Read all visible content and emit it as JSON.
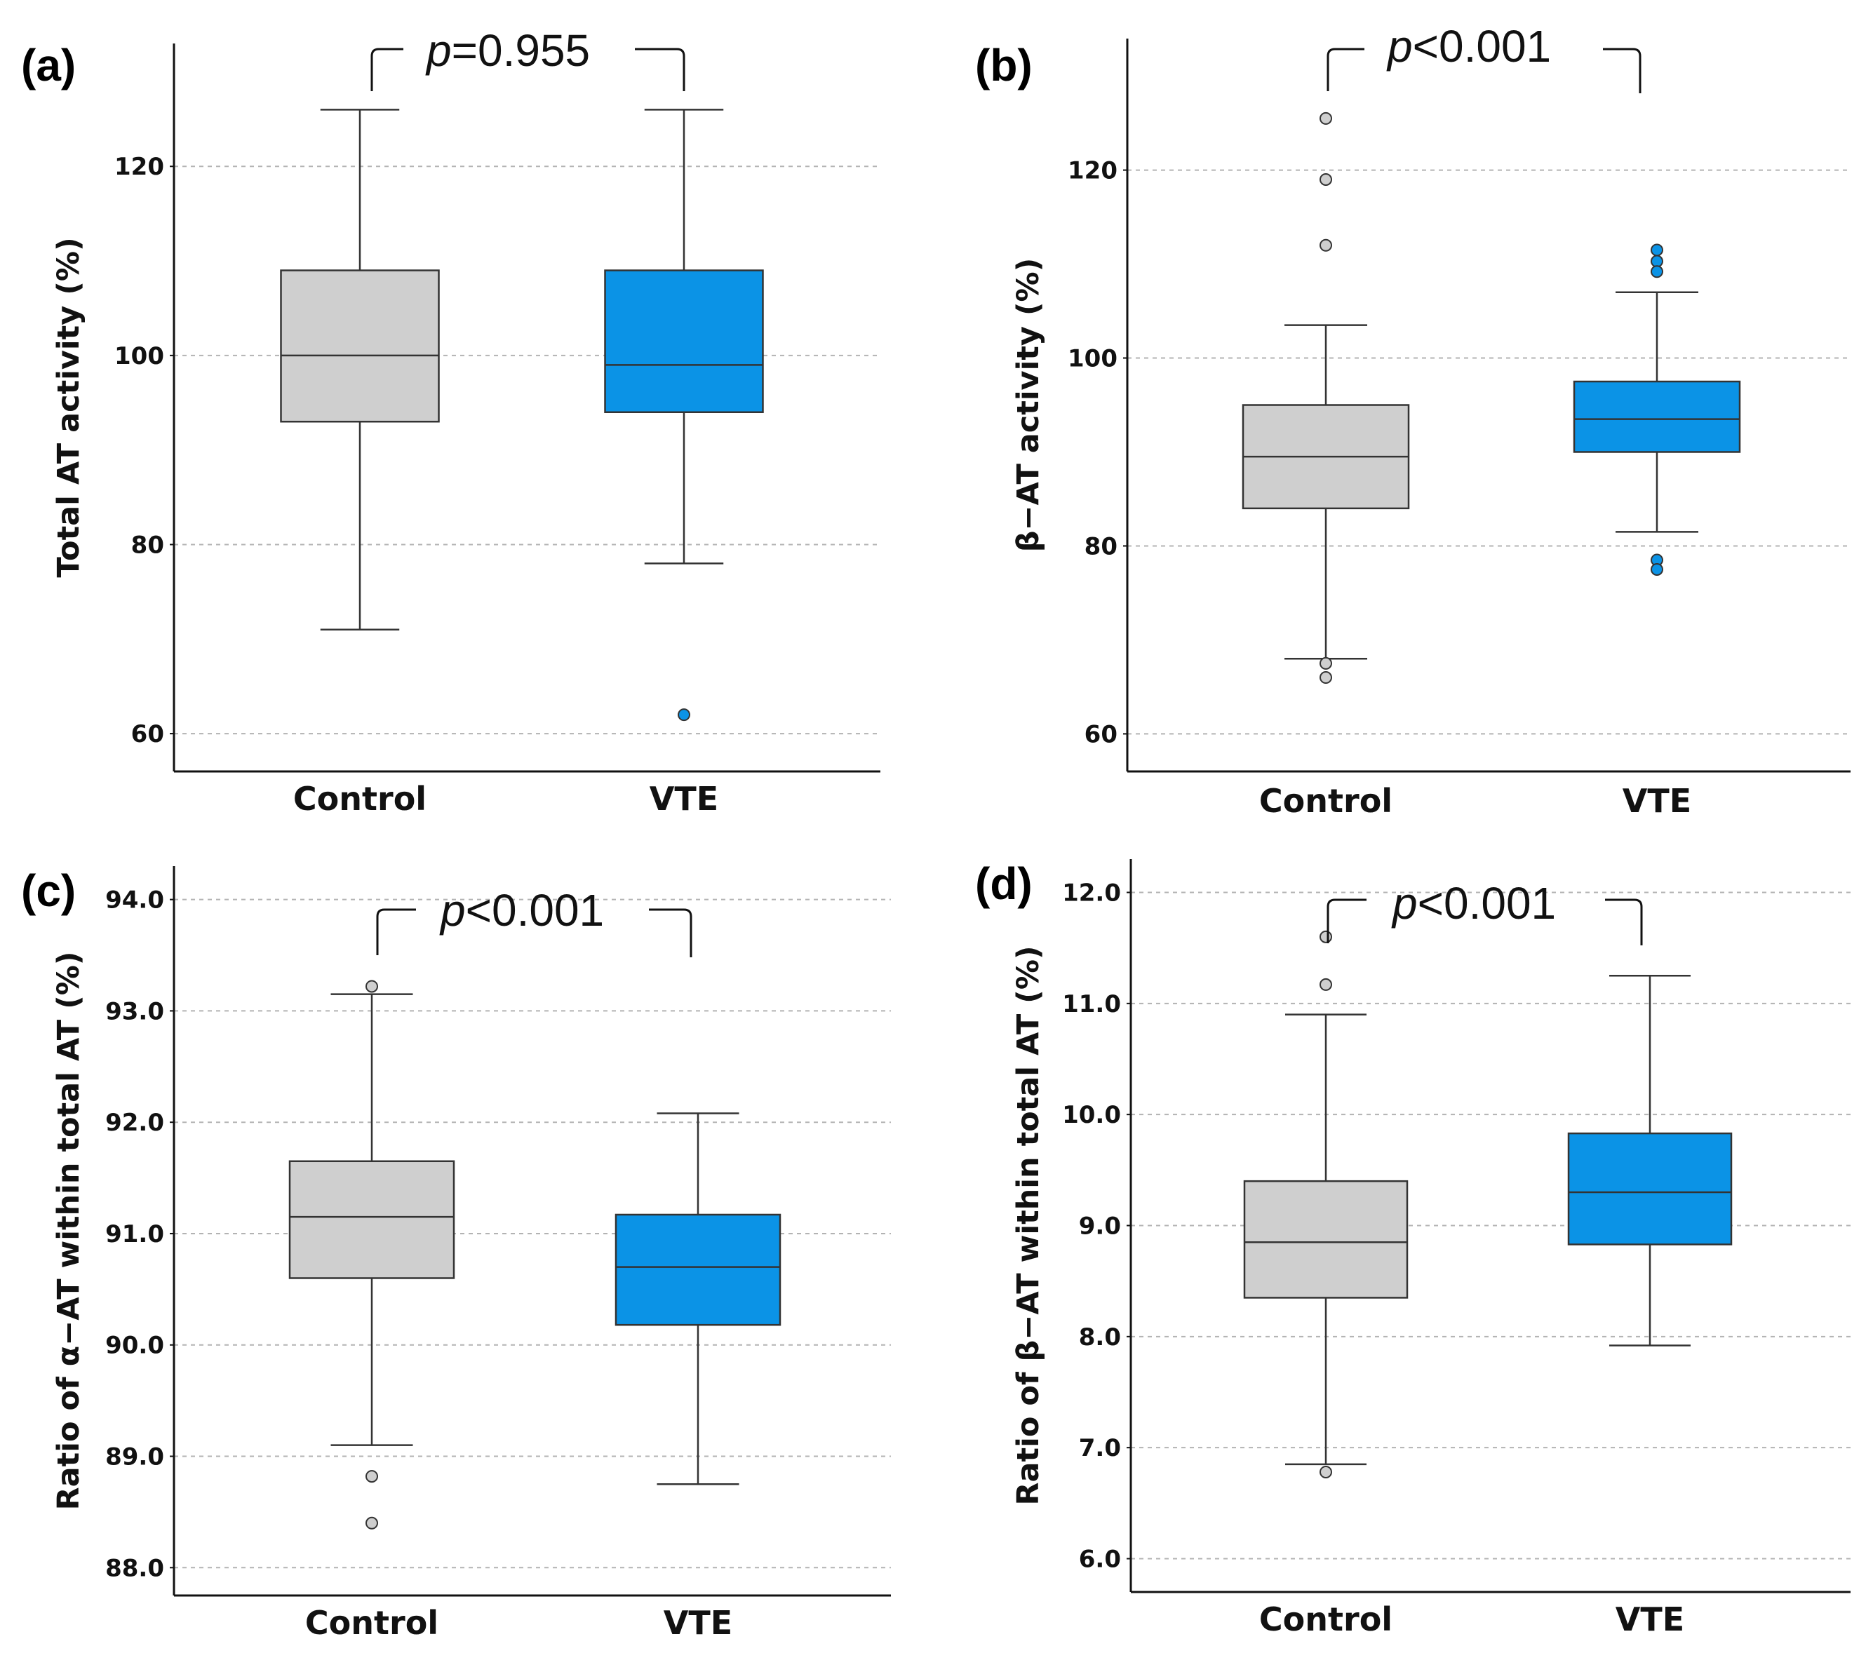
{
  "colors": {
    "control": "#cfcfcf",
    "vte": "#0b93e6",
    "grid": "#b3b3b3",
    "axis": "#111111"
  },
  "chart_data": [
    {
      "type": "box",
      "panel_label": "(a)",
      "ylabel": "Total AT activity (%)",
      "ylim": [
        56,
        133
      ],
      "yticks": [
        60,
        80,
        100,
        120
      ],
      "ytick_labels": [
        "60",
        "80",
        "100",
        "120"
      ],
      "grid": true,
      "categories": [
        "Control",
        "VTE"
      ],
      "groups": [
        {
          "name": "Control",
          "whisker_low": 71,
          "q1": 93,
          "median": 100,
          "q3": 109,
          "whisker_high": 126,
          "outliers": []
        },
        {
          "name": "VTE",
          "whisker_low": 78,
          "q1": 94,
          "median": 99,
          "q3": 109,
          "whisker_high": 126,
          "outliers": [
            62
          ]
        }
      ],
      "annotation": {
        "prefix": "p",
        "text": "=0.955"
      }
    },
    {
      "type": "box",
      "panel_label": "(b)",
      "ylabel": "β−AT activity (%)",
      "ylim": [
        56,
        134
      ],
      "yticks": [
        60,
        80,
        100,
        120
      ],
      "ytick_labels": [
        "60",
        "80",
        "100",
        "120"
      ],
      "grid": true,
      "categories": [
        "Control",
        "VTE"
      ],
      "groups": [
        {
          "name": "Control",
          "whisker_low": 68,
          "q1": 84,
          "median": 89.5,
          "q3": 95,
          "whisker_high": 103.5,
          "outliers": [
            125.5,
            119,
            112,
            67.5,
            66
          ]
        },
        {
          "name": "VTE",
          "whisker_low": 81.5,
          "q1": 90,
          "median": 93.5,
          "q3": 97.5,
          "whisker_high": 107,
          "outliers": [
            111.5,
            110.3,
            109.2,
            78.5,
            77.5
          ]
        }
      ],
      "annotation": {
        "prefix": "p",
        "text": "<0.001"
      }
    },
    {
      "type": "box",
      "panel_label": "(c)",
      "ylabel": "Ratio of α−AT within total AT (%)",
      "ylim": [
        87.75,
        94.3
      ],
      "yticks": [
        88.0,
        89.0,
        90.0,
        91.0,
        92.0,
        93.0,
        94.0
      ],
      "ytick_labels": [
        "88.0",
        "89.0",
        "90.0",
        "91.0",
        "92.0",
        "93.0",
        "94.0"
      ],
      "grid": true,
      "categories": [
        "Control",
        "VTE"
      ],
      "groups": [
        {
          "name": "Control",
          "whisker_low": 89.1,
          "q1": 90.6,
          "median": 91.15,
          "q3": 91.65,
          "whisker_high": 93.15,
          "outliers": [
            93.22,
            88.82,
            88.4
          ]
        },
        {
          "name": "VTE",
          "whisker_low": 88.75,
          "q1": 90.18,
          "median": 90.7,
          "q3": 91.17,
          "whisker_high": 92.08,
          "outliers": []
        }
      ],
      "annotation": {
        "prefix": "p",
        "text": "<0.001"
      }
    },
    {
      "type": "box",
      "panel_label": "(d)",
      "ylabel": "Ratio of β−AT within total AT (%)",
      "ylim": [
        5.7,
        12.3
      ],
      "yticks": [
        6.0,
        7.0,
        8.0,
        9.0,
        10.0,
        11.0,
        12.0
      ],
      "ytick_labels": [
        "6.0",
        "7.0",
        "8.0",
        "9.0",
        "10.0",
        "11.0",
        "12.0"
      ],
      "grid": true,
      "categories": [
        "Control",
        "VTE"
      ],
      "groups": [
        {
          "name": "Control",
          "whisker_low": 6.85,
          "q1": 8.35,
          "median": 8.85,
          "q3": 9.4,
          "whisker_high": 10.9,
          "outliers": [
            11.6,
            11.17,
            6.78
          ]
        },
        {
          "name": "VTE",
          "whisker_low": 7.92,
          "q1": 8.83,
          "median": 9.3,
          "q3": 9.83,
          "whisker_high": 11.25,
          "outliers": []
        }
      ],
      "annotation": {
        "prefix": "p",
        "text": "<0.001"
      }
    }
  ]
}
